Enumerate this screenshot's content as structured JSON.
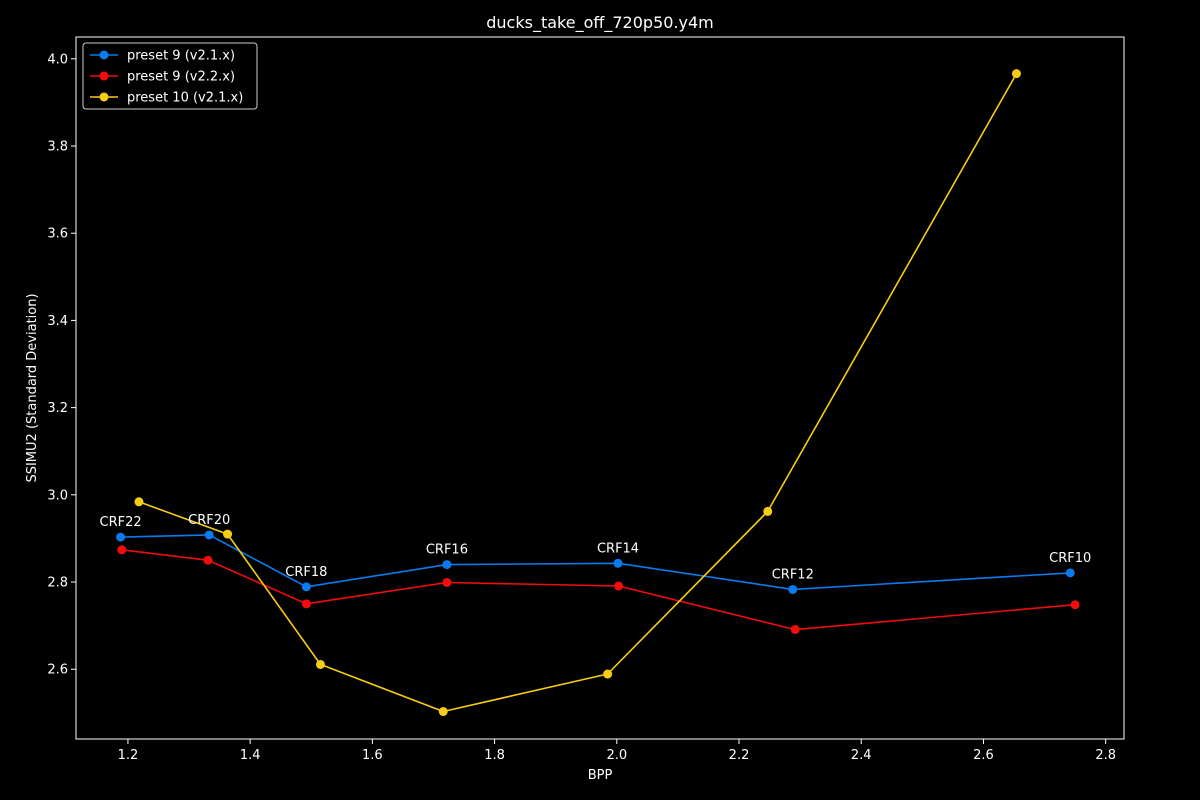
{
  "chart_data": {
    "type": "line",
    "title": "ducks_take_off_720p50.y4m",
    "xlabel": "BPP",
    "ylabel": "SSIMU2 (Standard Deviation)",
    "xlim": [
      1.115,
      2.83
    ],
    "ylim": [
      2.44,
      4.05
    ],
    "xticks": [
      1.2,
      1.4,
      1.6,
      1.8,
      2.0,
      2.2,
      2.4,
      2.6,
      2.8
    ],
    "yticks": [
      2.6,
      2.8,
      3.0,
      3.2,
      3.4,
      3.6,
      3.8,
      4.0
    ],
    "grid": false,
    "legend_position": "top-left",
    "series": [
      {
        "name": "preset 9 (v2.1.x)",
        "color": "#0a7bed",
        "points": [
          {
            "x": 1.188,
            "y": 2.903
          },
          {
            "x": 1.333,
            "y": 2.908
          },
          {
            "x": 1.492,
            "y": 2.789
          },
          {
            "x": 1.722,
            "y": 2.84
          },
          {
            "x": 2.002,
            "y": 2.843
          },
          {
            "x": 2.288,
            "y": 2.783
          },
          {
            "x": 2.742,
            "y": 2.821
          }
        ]
      },
      {
        "name": "preset 9 (v2.2.x)",
        "color": "#f20d0d",
        "points": [
          {
            "x": 1.19,
            "y": 2.874
          },
          {
            "x": 1.331,
            "y": 2.85
          },
          {
            "x": 1.492,
            "y": 2.75
          },
          {
            "x": 1.722,
            "y": 2.799
          },
          {
            "x": 2.003,
            "y": 2.791
          },
          {
            "x": 2.292,
            "y": 2.691
          },
          {
            "x": 2.75,
            "y": 2.748
          }
        ]
      },
      {
        "name": "preset 10 (v2.1.x)",
        "color": "#f7cc14",
        "points": [
          {
            "x": 1.218,
            "y": 2.984
          },
          {
            "x": 1.363,
            "y": 2.91
          },
          {
            "x": 1.515,
            "y": 2.611
          },
          {
            "x": 1.716,
            "y": 2.503
          },
          {
            "x": 1.985,
            "y": 2.589
          },
          {
            "x": 2.247,
            "y": 2.962
          },
          {
            "x": 2.654,
            "y": 3.966
          }
        ]
      }
    ],
    "annotations": [
      {
        "text": "CRF22",
        "x": 1.188,
        "y": 2.903
      },
      {
        "text": "CRF20",
        "x": 1.333,
        "y": 2.908
      },
      {
        "text": "CRF18",
        "x": 1.492,
        "y": 2.789
      },
      {
        "text": "CRF16",
        "x": 1.722,
        "y": 2.84
      },
      {
        "text": "CRF14",
        "x": 2.002,
        "y": 2.843
      },
      {
        "text": "CRF12",
        "x": 2.288,
        "y": 2.783
      },
      {
        "text": "CRF10",
        "x": 2.742,
        "y": 2.821
      }
    ]
  }
}
